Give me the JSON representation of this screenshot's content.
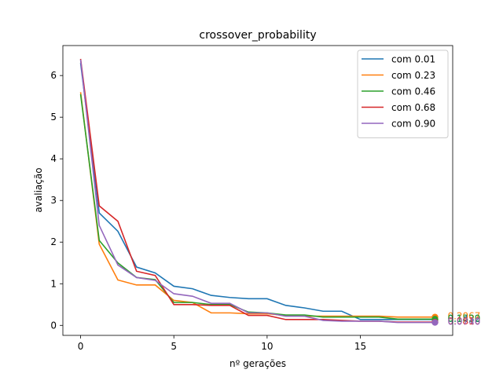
{
  "chart_data": {
    "type": "line",
    "title": "crossover_probability",
    "xlabel": "nº gerações",
    "ylabel": "avaliação",
    "xlim": [
      -0.95,
      19.95
    ],
    "ylim": [
      -0.24,
      6.72
    ],
    "xticks": [
      0,
      5,
      10,
      15
    ],
    "yticks": [
      0,
      1,
      2,
      3,
      4,
      5,
      6
    ],
    "grid": false,
    "legend_position": "top-right",
    "x": [
      0,
      1,
      2,
      3,
      4,
      5,
      6,
      7,
      8,
      9,
      10,
      11,
      12,
      13,
      14,
      15,
      16,
      17,
      18,
      19
    ],
    "series": [
      {
        "name": "com 0.01",
        "color": "#1f77b4",
        "values": [
          6.3,
          2.7,
          2.26,
          1.4,
          1.26,
          0.94,
          0.88,
          0.72,
          0.67,
          0.64,
          0.64,
          0.48,
          0.42,
          0.34,
          0.34,
          0.14,
          0.14,
          0.14,
          0.14,
          0.14
        ],
        "end_label": "0.1432"
      },
      {
        "name": "com 0.23",
        "color": "#ff7f0e",
        "values": [
          5.6,
          1.95,
          1.09,
          0.97,
          0.97,
          0.6,
          0.55,
          0.3,
          0.3,
          0.28,
          0.28,
          0.24,
          0.22,
          0.22,
          0.22,
          0.22,
          0.22,
          0.2,
          0.2,
          0.2
        ],
        "end_label": "0.2067"
      },
      {
        "name": "com 0.46",
        "color": "#2ca02c",
        "values": [
          5.55,
          2.04,
          1.5,
          1.15,
          1.1,
          0.55,
          0.55,
          0.5,
          0.5,
          0.32,
          0.3,
          0.25,
          0.25,
          0.2,
          0.2,
          0.2,
          0.2,
          0.15,
          0.15,
          0.15
        ],
        "end_label": "0.1520"
      },
      {
        "name": "com 0.68",
        "color": "#d62728",
        "values": [
          6.4,
          2.87,
          2.5,
          1.3,
          1.2,
          0.5,
          0.5,
          0.48,
          0.48,
          0.24,
          0.24,
          0.14,
          0.14,
          0.14,
          0.12,
          0.1,
          0.1,
          0.08,
          0.08,
          0.08
        ],
        "end_label": "0.0810"
      },
      {
        "name": "com 0.90",
        "color": "#9467bd",
        "values": [
          6.38,
          2.4,
          1.45,
          1.15,
          1.08,
          0.76,
          0.7,
          0.53,
          0.53,
          0.3,
          0.3,
          0.22,
          0.22,
          0.12,
          0.1,
          0.1,
          0.1,
          0.07,
          0.07,
          0.07
        ],
        "end_label": "0.0740"
      }
    ]
  }
}
